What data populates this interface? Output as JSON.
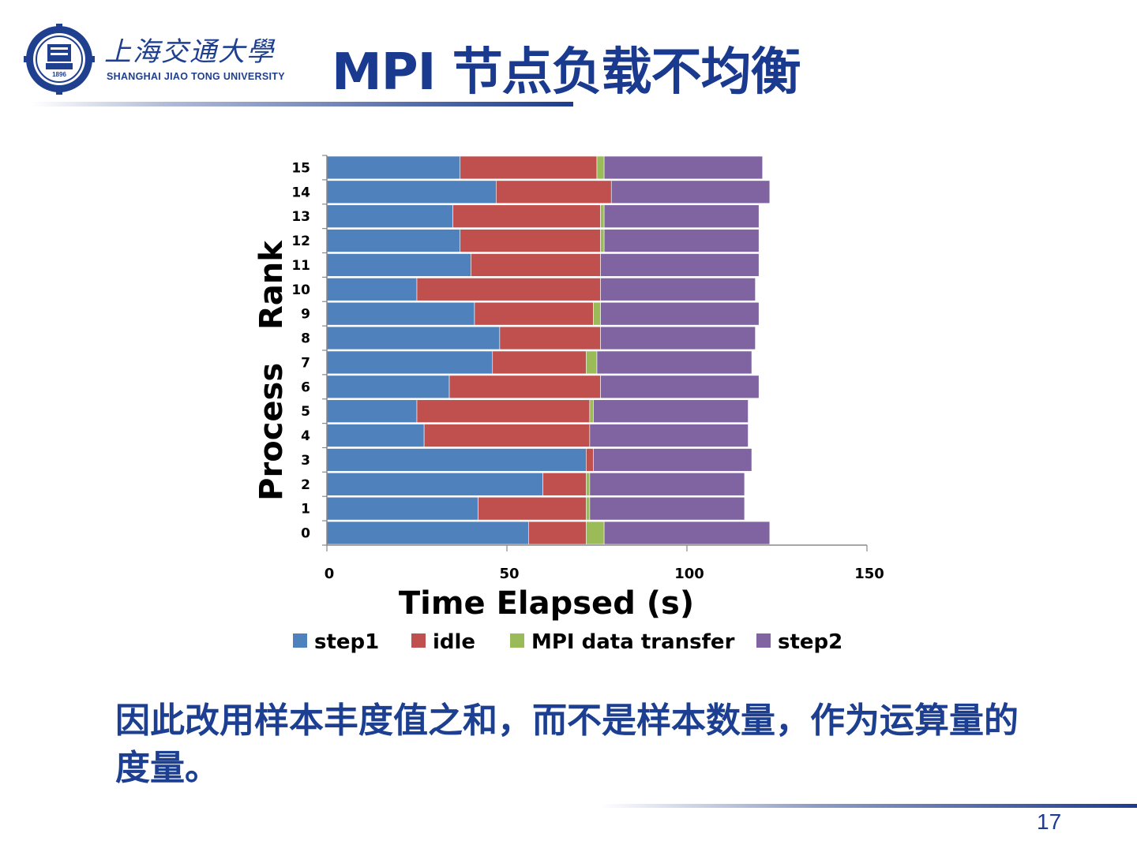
{
  "header": {
    "logo_cn": "上海交通大學",
    "logo_en": "SHANGHAI  JIAO TONG  UNIVERSITY",
    "logo_year": "1896",
    "title": "MPI 节点负载不均衡"
  },
  "caption": "因此改用样本丰度值之和，而不是样本数量，作为运算量的度量。",
  "page_number": "17",
  "colors": {
    "title": "#1a3a8f",
    "step1": "#4f81bd",
    "idle": "#c0504d",
    "mpi": "#9bbb59",
    "step2": "#8064a2"
  },
  "chart_data": {
    "type": "bar",
    "orientation": "horizontal",
    "stacked": true,
    "categories": [
      "0",
      "1",
      "2",
      "3",
      "4",
      "5",
      "6",
      "7",
      "8",
      "9",
      "10",
      "11",
      "12",
      "13",
      "14",
      "15"
    ],
    "series": [
      {
        "name": "step1",
        "color": "#4f81bd",
        "values": [
          56,
          42,
          60,
          72,
          27,
          25,
          34,
          46,
          48,
          41,
          25,
          40,
          37,
          35,
          47,
          37
        ]
      },
      {
        "name": "idle",
        "color": "#c0504d",
        "values": [
          16,
          30,
          12,
          2,
          46,
          48,
          42,
          26,
          28,
          33,
          51,
          36,
          39,
          41,
          32,
          38
        ]
      },
      {
        "name": "MPI data transfer",
        "color": "#9bbb59",
        "values": [
          5,
          1,
          1,
          0,
          0,
          1,
          0,
          3,
          0,
          2,
          0,
          0,
          1,
          1,
          0,
          2
        ]
      },
      {
        "name": "step2",
        "color": "#8064a2",
        "values": [
          46,
          43,
          43,
          44,
          44,
          43,
          44,
          43,
          43,
          44,
          43,
          44,
          43,
          43,
          44,
          44
        ]
      }
    ],
    "xlabel": "Time Elapsed (s)",
    "ylabel": "Process   Rank",
    "xlim": [
      0,
      150
    ],
    "xticks": [
      0,
      50,
      100,
      150
    ],
    "grid": false,
    "legend": "bottom"
  }
}
